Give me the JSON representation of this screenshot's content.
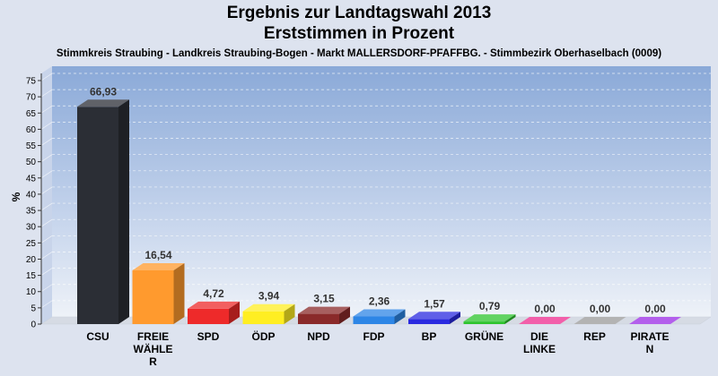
{
  "header": {
    "title_line1": "Ergebnis zur Landtagswahl 2013",
    "title_line2": "Erststimmen in Prozent",
    "subtitle": "Stimmkreis Straubing - Landkreis Straubing-Bogen - Markt MALLERSDORF-PFAFFBG. - Stimmbezirk Oberhaselbach (0009)"
  },
  "chart_data": {
    "type": "bar",
    "title": "Ergebnis zur Landtagswahl 2013",
    "subtitle": "Erststimmen in Prozent",
    "ylabel": "%",
    "ylim": [
      0,
      75
    ],
    "yticks": [
      0,
      5,
      10,
      15,
      20,
      25,
      30,
      35,
      40,
      45,
      50,
      55,
      60,
      65,
      70,
      75
    ],
    "grid": true,
    "categories": [
      [
        "CSU"
      ],
      [
        "FREIE",
        "WÄHLE",
        "R"
      ],
      [
        "SPD"
      ],
      [
        "ÖDP"
      ],
      [
        "NPD"
      ],
      [
        "FDP"
      ],
      [
        "BP"
      ],
      [
        "GRÜNE"
      ],
      [
        "DIE",
        "LINKE"
      ],
      [
        "REP"
      ],
      [
        "PIRATE",
        "N"
      ]
    ],
    "values": [
      66.93,
      16.54,
      4.72,
      3.94,
      3.15,
      2.36,
      1.57,
      0.79,
      0.0,
      0.0,
      0.0
    ],
    "value_labels": [
      "66,93",
      "16,54",
      "4,72",
      "3,94",
      "3,15",
      "2,36",
      "1,57",
      "0,79",
      "0,00",
      "0,00",
      "0,00"
    ],
    "colors": [
      "#2b2e35",
      "#ff9a2e",
      "#ee2a2a",
      "#ffee22",
      "#8a2a2a",
      "#2d86e6",
      "#2a2ae0",
      "#2ec42e",
      "#ee2a8e",
      "#9a9a9a",
      "#9a2ae6"
    ]
  }
}
